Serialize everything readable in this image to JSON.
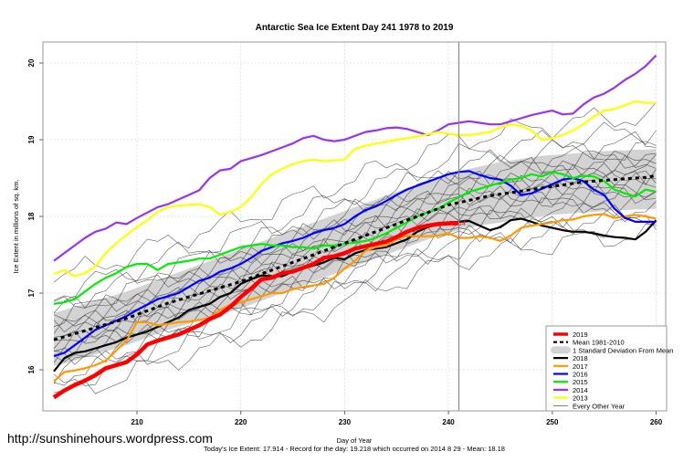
{
  "chart_data": {
    "type": "line",
    "title": "Antarctic Sea Ice Extent Day 241 1978 to 2019",
    "xlabel": "Day of Year",
    "ylabel": "Ice Extent in millions of sq. km.",
    "xlim": [
      201,
      261
    ],
    "ylim": [
      15.47,
      20.29
    ],
    "xticks": [
      210,
      220,
      230,
      240,
      250,
      260
    ],
    "yticks": [
      16,
      17,
      18,
      19,
      20
    ],
    "grid": true,
    "current_day": 241,
    "current_label": "17.914",
    "legend_position": "bottom-right",
    "x": [
      202,
      203,
      204,
      205,
      206,
      207,
      208,
      209,
      210,
      211,
      212,
      213,
      214,
      215,
      216,
      217,
      218,
      219,
      220,
      221,
      222,
      223,
      224,
      225,
      226,
      227,
      228,
      229,
      230,
      231,
      232,
      233,
      234,
      235,
      236,
      237,
      238,
      239,
      240,
      241,
      242,
      243,
      244,
      245,
      246,
      247,
      248,
      249,
      250,
      251,
      252,
      253,
      254,
      255,
      256,
      257,
      258,
      259,
      260
    ],
    "band": {
      "name": "1 Standard Deviation From Mean",
      "upper": [
        16.74,
        16.78,
        16.82,
        16.86,
        16.9,
        16.94,
        16.98,
        17.02,
        17.07,
        17.12,
        17.17,
        17.22,
        17.27,
        17.32,
        17.37,
        17.42,
        17.47,
        17.52,
        17.57,
        17.62,
        17.67,
        17.72,
        17.77,
        17.82,
        17.87,
        17.92,
        17.97,
        18.02,
        18.07,
        18.12,
        18.17,
        18.22,
        18.27,
        18.32,
        18.37,
        18.42,
        18.47,
        18.51,
        18.55,
        18.59,
        18.62,
        18.65,
        18.68,
        18.71,
        18.73,
        18.75,
        18.77,
        18.79,
        18.8,
        18.81,
        18.82,
        18.83,
        18.84,
        18.85,
        18.86,
        18.86,
        18.87,
        18.87,
        18.88
      ],
      "lower": [
        16.05,
        16.08,
        16.12,
        16.16,
        16.2,
        16.24,
        16.28,
        16.32,
        16.37,
        16.42,
        16.47,
        16.52,
        16.56,
        16.6,
        16.64,
        16.68,
        16.72,
        16.76,
        16.8,
        16.85,
        16.9,
        16.95,
        17.0,
        17.05,
        17.1,
        17.15,
        17.2,
        17.25,
        17.3,
        17.35,
        17.4,
        17.45,
        17.5,
        17.55,
        17.6,
        17.65,
        17.7,
        17.74,
        17.78,
        17.82,
        17.85,
        17.88,
        17.9,
        17.92,
        17.94,
        17.96,
        17.98,
        18.0,
        18.02,
        18.03,
        18.04,
        18.05,
        18.06,
        18.07,
        18.08,
        18.08,
        18.09,
        18.09,
        18.1
      ]
    },
    "series": [
      {
        "name": "2019",
        "color": "#ff0000",
        "values": [
          15.64,
          15.73,
          15.8,
          15.86,
          15.93,
          16.02,
          16.06,
          16.1,
          16.2,
          16.33,
          16.38,
          16.42,
          16.46,
          16.52,
          16.58,
          16.66,
          16.72,
          16.82,
          16.95,
          17.06,
          17.18,
          17.2,
          17.26,
          17.28,
          17.33,
          17.38,
          17.46,
          17.48,
          17.52,
          17.58,
          17.61,
          17.64,
          17.67,
          17.73,
          17.8,
          17.85,
          17.88,
          17.9,
          17.91,
          17.914
        ]
      },
      {
        "name": "Mean 1981-2010",
        "color": "#000000",
        "dashed": true,
        "values": [
          16.39,
          16.43,
          16.47,
          16.51,
          16.55,
          16.59,
          16.63,
          16.67,
          16.72,
          16.77,
          16.82,
          16.87,
          16.91,
          16.95,
          16.99,
          17.03,
          17.07,
          17.11,
          17.15,
          17.2,
          17.25,
          17.3,
          17.35,
          17.4,
          17.45,
          17.5,
          17.55,
          17.6,
          17.65,
          17.7,
          17.75,
          17.8,
          17.85,
          17.9,
          17.95,
          18.0,
          18.05,
          18.1,
          18.15,
          18.18,
          18.21,
          18.24,
          18.27,
          18.29,
          18.31,
          18.33,
          18.35,
          18.37,
          18.39,
          18.41,
          18.43,
          18.45,
          18.46,
          18.47,
          18.48,
          18.49,
          18.5,
          18.51,
          18.53
        ]
      },
      {
        "name": "2018",
        "color": "#000000",
        "values": [
          15.98,
          16.15,
          16.22,
          16.24,
          16.28,
          16.32,
          16.36,
          16.42,
          16.46,
          16.5,
          16.56,
          16.62,
          16.68,
          16.78,
          16.82,
          16.86,
          16.95,
          17.0,
          17.12,
          17.18,
          17.23,
          17.22,
          17.22,
          17.28,
          17.32,
          17.36,
          17.4,
          17.46,
          17.44,
          17.52,
          17.56,
          17.58,
          17.6,
          17.65,
          17.7,
          17.8,
          17.86,
          17.9,
          17.92,
          17.93,
          17.94,
          17.88,
          17.82,
          17.86,
          17.95,
          17.97,
          17.93,
          17.88,
          17.85,
          17.82,
          17.8,
          17.8,
          17.78,
          17.75,
          17.73,
          17.72,
          17.7,
          17.8,
          17.95
        ]
      },
      {
        "name": "2017",
        "color": "#ff9900",
        "values": [
          15.85,
          15.97,
          15.99,
          16.02,
          16.06,
          16.12,
          16.25,
          16.38,
          16.62,
          16.62,
          16.58,
          16.6,
          16.62,
          16.63,
          16.65,
          16.68,
          16.78,
          16.85,
          16.88,
          16.92,
          16.96,
          17.0,
          17.0,
          17.05,
          17.08,
          17.1,
          17.12,
          17.2,
          17.32,
          17.42,
          17.55,
          17.6,
          17.62,
          17.7,
          17.75,
          17.74,
          17.74,
          17.75,
          17.78,
          17.72,
          17.72,
          17.74,
          17.72,
          17.68,
          17.75,
          17.85,
          17.88,
          17.9,
          17.92,
          17.95,
          17.96,
          18.0,
          18.02,
          18.03,
          17.98,
          18.0,
          18.02,
          18.0,
          17.97
        ]
      },
      {
        "name": "2016",
        "color": "#0000ff",
        "values": [
          16.18,
          16.22,
          16.32,
          16.42,
          16.52,
          16.58,
          16.64,
          16.7,
          16.78,
          16.85,
          16.92,
          16.96,
          17.0,
          17.08,
          17.16,
          17.2,
          17.28,
          17.32,
          17.38,
          17.46,
          17.55,
          17.6,
          17.65,
          17.68,
          17.72,
          17.78,
          17.82,
          17.85,
          17.9,
          18.0,
          18.08,
          18.13,
          18.2,
          18.28,
          18.35,
          18.4,
          18.45,
          18.5,
          18.55,
          18.58,
          18.59,
          18.54,
          18.5,
          18.48,
          18.4,
          18.28,
          18.3,
          18.36,
          18.42,
          18.48,
          18.5,
          18.46,
          18.35,
          18.28,
          18.1,
          17.98,
          17.93,
          17.93,
          17.93
        ]
      },
      {
        "name": "2015",
        "color": "#00ee00",
        "values": [
          16.86,
          16.88,
          16.92,
          17.02,
          17.12,
          17.2,
          17.26,
          17.34,
          17.38,
          17.38,
          17.3,
          17.38,
          17.4,
          17.42,
          17.45,
          17.45,
          17.5,
          17.55,
          17.6,
          17.62,
          17.64,
          17.62,
          17.62,
          17.6,
          17.6,
          17.58,
          17.62,
          17.62,
          17.64,
          17.66,
          17.68,
          17.72,
          17.78,
          17.85,
          17.92,
          18.0,
          18.05,
          18.1,
          18.18,
          18.25,
          18.32,
          18.36,
          18.4,
          18.44,
          18.48,
          18.5,
          18.55,
          18.52,
          18.58,
          18.55,
          18.5,
          18.53,
          18.52,
          18.46,
          18.35,
          18.3,
          18.26,
          18.35,
          18.32
        ]
      },
      {
        "name": "2014",
        "color": "#9933ee",
        "values": [
          17.42,
          17.52,
          17.62,
          17.72,
          17.8,
          17.84,
          17.92,
          17.9,
          17.98,
          18.05,
          18.12,
          18.16,
          18.22,
          18.28,
          18.34,
          18.5,
          18.6,
          18.62,
          18.72,
          18.76,
          18.8,
          18.85,
          18.9,
          18.95,
          19.02,
          19.05,
          19.0,
          18.98,
          19.0,
          19.05,
          19.1,
          19.12,
          19.15,
          19.16,
          19.14,
          19.1,
          19.06,
          19.12,
          19.2,
          19.22,
          19.24,
          19.22,
          19.2,
          19.2,
          19.24,
          19.28,
          19.32,
          19.35,
          19.38,
          19.33,
          19.34,
          19.46,
          19.55,
          19.6,
          19.68,
          19.78,
          19.86,
          19.96,
          20.1
        ]
      },
      {
        "name": "2013",
        "color": "#ffff00",
        "values": [
          17.25,
          17.3,
          17.22,
          17.26,
          17.35,
          17.52,
          17.65,
          17.76,
          17.86,
          17.95,
          18.06,
          18.12,
          18.14,
          18.15,
          18.16,
          18.12,
          18.02,
          18.06,
          18.12,
          18.25,
          18.42,
          18.55,
          18.62,
          18.68,
          18.72,
          18.74,
          18.72,
          18.73,
          18.74,
          18.88,
          18.92,
          18.95,
          18.97,
          19.0,
          19.02,
          19.04,
          19.07,
          19.1,
          19.08,
          19.06,
          19.06,
          19.08,
          19.1,
          19.16,
          19.2,
          19.18,
          19.12,
          19.0,
          19.02,
          19.06,
          19.12,
          19.2,
          19.3,
          19.38,
          19.4,
          19.45,
          19.5,
          19.48,
          19.48
        ]
      }
    ],
    "legend": [
      {
        "label": "2019",
        "color": "#ff0000",
        "style": "thick"
      },
      {
        "label": "Mean 1981-2010",
        "color": "#000000",
        "style": "dashed"
      },
      {
        "label": "1 Standard Deviation From Mean",
        "color": "#d3d3d3",
        "style": "band"
      },
      {
        "label": "2018",
        "color": "#000000",
        "style": "line"
      },
      {
        "label": "2017",
        "color": "#ff9900",
        "style": "line"
      },
      {
        "label": "2016",
        "color": "#0000ff",
        "style": "line"
      },
      {
        "label": "2015",
        "color": "#00ee00",
        "style": "line"
      },
      {
        "label": "2014",
        "color": "#9933ee",
        "style": "line"
      },
      {
        "label": "2013",
        "color": "#ffff00",
        "style": "line"
      },
      {
        "label": "Every Other Year",
        "color": "#555555",
        "style": "thin"
      }
    ]
  },
  "footer": {
    "watermark": "http://sunshinehours.wordpress.com",
    "stats": "Today's Ice Extent: 17.914  - Record for the day: 19.218 which occurred on 2014 8 29  - Mean: 18.18"
  }
}
